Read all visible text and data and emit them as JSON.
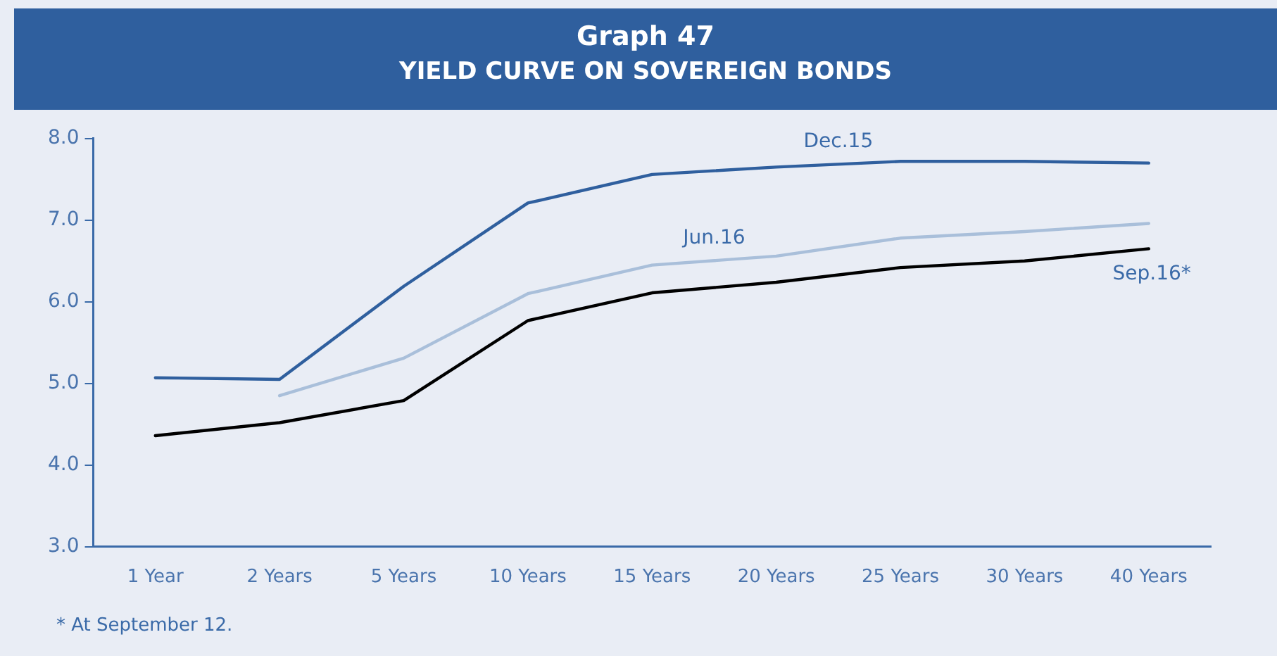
{
  "chart_data": {
    "type": "line",
    "title": "Graph 47",
    "subtitle": "YIELD CURVE ON SOVEREIGN BONDS",
    "categories": [
      "1 Year",
      "2 Years",
      "5 Years",
      "10 Years",
      "15 Years",
      "20 Years",
      "25 Years",
      "30 Years",
      "40 Years"
    ],
    "series": [
      {
        "name": "Dec.15",
        "color": "#2f5f9e",
        "values": [
          5.07,
          5.05,
          6.19,
          7.21,
          7.56,
          7.65,
          7.72,
          7.72,
          7.7
        ]
      },
      {
        "name": "Jun.16",
        "color": "#a9bfda",
        "values": [
          null,
          4.85,
          5.31,
          6.1,
          6.45,
          6.56,
          6.78,
          6.86,
          6.96
        ]
      },
      {
        "name": "Sep.16*",
        "color": "#000000",
        "values": [
          4.36,
          4.52,
          4.79,
          5.77,
          6.11,
          6.24,
          6.42,
          6.5,
          6.65
        ]
      }
    ],
    "ylim": [
      3,
      8
    ],
    "yticks": [
      {
        "value": 3,
        "label": "3.0"
      },
      {
        "value": 4,
        "label": "4.0"
      },
      {
        "value": 5,
        "label": "5.0"
      },
      {
        "value": 6,
        "label": "6.0"
      },
      {
        "value": 7,
        "label": "7.0"
      },
      {
        "value": 8,
        "label": "8.0"
      }
    ],
    "grid": false,
    "legend": false,
    "marker": "none",
    "line_style": "solid",
    "annotations": [
      "* At September 12."
    ]
  }
}
